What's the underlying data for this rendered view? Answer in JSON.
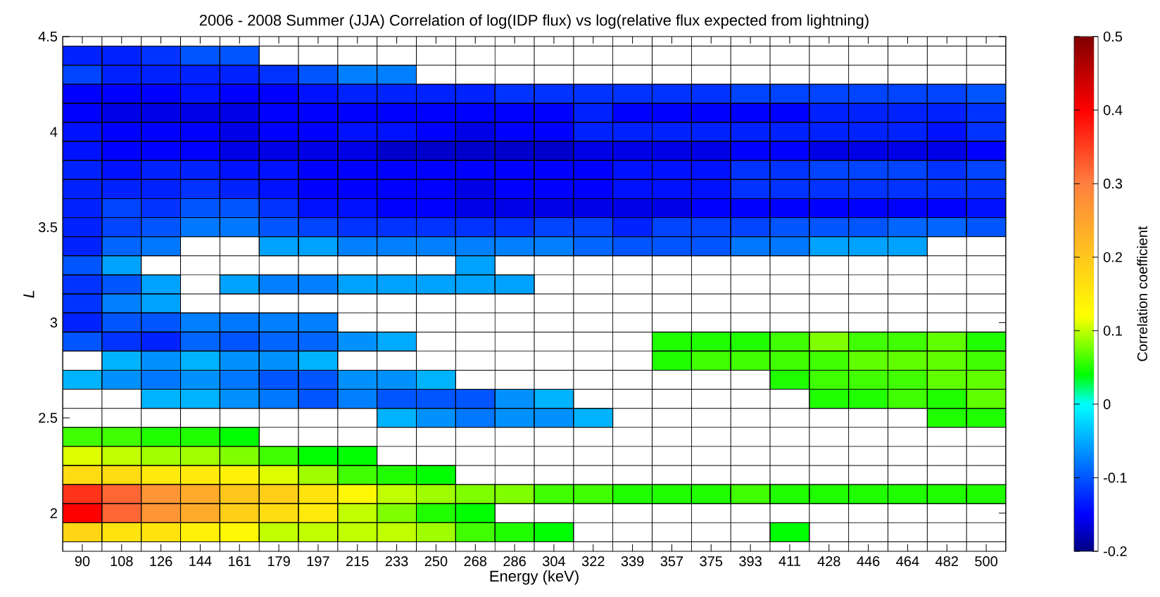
{
  "chart_data": {
    "type": "heatmap",
    "title": "2006 - 2008 Summer (JJA) Correlation of log(IDP flux) vs log(relative flux expected from lightning)",
    "xlabel": "Energy (keV)",
    "ylabel": "L",
    "clabel": "Correlation coefficient",
    "categories": [
      "90",
      "108",
      "126",
      "144",
      "161",
      "179",
      "197",
      "215",
      "233",
      "250",
      "268",
      "286",
      "304",
      "322",
      "339",
      "357",
      "375",
      "393",
      "411",
      "428",
      "446",
      "464",
      "482",
      "500"
    ],
    "grid": true,
    "ylim": [
      1.8,
      4.5
    ],
    "yticks": [
      2,
      2.5,
      3,
      3.5,
      4,
      4.5
    ],
    "clim": [
      -0.2,
      0.5
    ],
    "cticks": [
      -0.2,
      -0.1,
      0,
      0.1,
      0.2,
      0.3,
      0.4,
      0.5
    ],
    "cells": [
      [
        -0.13,
        -0.13,
        -0.12,
        -0.1,
        -0.1,
        null,
        null,
        null,
        null,
        null,
        null,
        null,
        null,
        null,
        null,
        null,
        null,
        null,
        null,
        null,
        null,
        null,
        null,
        null
      ],
      [
        -0.11,
        -0.13,
        -0.13,
        -0.13,
        -0.13,
        -0.12,
        -0.1,
        -0.075,
        -0.075,
        null,
        null,
        null,
        null,
        null,
        null,
        null,
        null,
        null,
        null,
        null,
        null,
        null,
        null,
        null
      ],
      [
        -0.15,
        -0.15,
        -0.15,
        -0.14,
        -0.15,
        -0.15,
        -0.14,
        -0.13,
        -0.13,
        -0.13,
        -0.13,
        -0.12,
        -0.12,
        -0.12,
        -0.12,
        -0.12,
        -0.12,
        -0.11,
        -0.11,
        -0.11,
        -0.11,
        -0.11,
        -0.11,
        -0.1
      ],
      [
        -0.15,
        -0.16,
        -0.16,
        -0.16,
        -0.16,
        -0.15,
        -0.15,
        -0.15,
        -0.15,
        -0.15,
        -0.15,
        -0.15,
        -0.15,
        -0.13,
        -0.15,
        -0.15,
        -0.15,
        -0.15,
        -0.15,
        -0.13,
        -0.13,
        -0.13,
        -0.13,
        -0.12
      ],
      [
        -0.14,
        -0.15,
        -0.15,
        -0.15,
        -0.16,
        -0.15,
        -0.15,
        -0.14,
        -0.14,
        -0.15,
        -0.16,
        -0.15,
        -0.15,
        -0.13,
        -0.13,
        -0.13,
        -0.13,
        -0.13,
        -0.13,
        -0.13,
        -0.13,
        -0.13,
        -0.14,
        -0.12
      ],
      [
        -0.14,
        -0.15,
        -0.15,
        -0.15,
        -0.16,
        -0.16,
        -0.16,
        -0.16,
        -0.17,
        -0.17,
        -0.17,
        -0.17,
        -0.17,
        -0.16,
        -0.16,
        -0.16,
        -0.16,
        -0.15,
        -0.15,
        -0.16,
        -0.16,
        -0.16,
        -0.16,
        -0.15
      ],
      [
        -0.13,
        -0.14,
        -0.13,
        -0.13,
        -0.14,
        -0.14,
        -0.15,
        -0.15,
        -0.15,
        -0.15,
        -0.15,
        -0.15,
        -0.15,
        -0.15,
        -0.14,
        -0.14,
        -0.14,
        -0.12,
        -0.12,
        -0.11,
        -0.11,
        -0.11,
        -0.12,
        -0.11
      ],
      [
        -0.13,
        -0.13,
        -0.13,
        -0.12,
        -0.13,
        -0.14,
        -0.15,
        -0.15,
        -0.15,
        -0.15,
        -0.16,
        -0.15,
        -0.15,
        -0.15,
        -0.14,
        -0.14,
        -0.14,
        -0.12,
        -0.12,
        -0.12,
        -0.12,
        -0.12,
        -0.12,
        -0.12
      ],
      [
        -0.13,
        -0.11,
        -0.12,
        -0.1,
        -0.1,
        -0.12,
        -0.14,
        -0.14,
        -0.15,
        -0.15,
        -0.16,
        -0.16,
        -0.16,
        -0.16,
        -0.16,
        -0.16,
        -0.15,
        -0.15,
        -0.15,
        -0.15,
        -0.15,
        -0.15,
        -0.15,
        -0.14
      ],
      [
        -0.13,
        -0.11,
        -0.1,
        -0.08,
        -0.08,
        -0.1,
        -0.11,
        -0.12,
        -0.12,
        -0.12,
        -0.12,
        -0.12,
        -0.11,
        -0.11,
        -0.13,
        -0.11,
        -0.11,
        -0.11,
        -0.1,
        -0.1,
        -0.1,
        -0.09,
        -0.09,
        -0.1
      ],
      [
        -0.13,
        -0.09,
        -0.08,
        null,
        null,
        -0.055,
        -0.055,
        -0.075,
        -0.075,
        -0.075,
        -0.075,
        -0.075,
        -0.075,
        -0.09,
        -0.1,
        -0.1,
        -0.1,
        -0.08,
        -0.08,
        -0.055,
        -0.055,
        -0.055,
        null,
        null
      ],
      [
        -0.1,
        -0.055,
        null,
        null,
        null,
        null,
        null,
        null,
        null,
        null,
        -0.055,
        null,
        null,
        null,
        null,
        null,
        null,
        null,
        null,
        null,
        null,
        null,
        null,
        null
      ],
      [
        -0.12,
        -0.1,
        -0.055,
        null,
        -0.055,
        -0.075,
        -0.075,
        -0.055,
        -0.055,
        -0.055,
        -0.055,
        -0.055,
        null,
        null,
        null,
        null,
        null,
        null,
        null,
        null,
        null,
        null,
        null,
        null
      ],
      [
        -0.12,
        -0.075,
        -0.055,
        null,
        null,
        null,
        null,
        null,
        null,
        null,
        null,
        null,
        null,
        null,
        null,
        null,
        null,
        null,
        null,
        null,
        null,
        null,
        null,
        null
      ],
      [
        -0.13,
        -0.1,
        -0.1,
        -0.075,
        -0.08,
        -0.075,
        -0.075,
        null,
        null,
        null,
        null,
        null,
        null,
        null,
        null,
        null,
        null,
        null,
        null,
        null,
        null,
        null,
        null,
        null
      ],
      [
        -0.1,
        -0.12,
        -0.13,
        -0.09,
        -0.1,
        -0.09,
        -0.09,
        -0.065,
        -0.05,
        null,
        null,
        null,
        null,
        null,
        null,
        0.05,
        0.05,
        0.05,
        0.06,
        0.08,
        0.06,
        0.06,
        0.07,
        0.05
      ],
      [
        null,
        -0.045,
        -0.065,
        -0.045,
        -0.065,
        -0.065,
        -0.045,
        null,
        null,
        null,
        null,
        null,
        null,
        null,
        null,
        0.05,
        0.06,
        0.06,
        0.06,
        0.06,
        0.07,
        0.07,
        0.07,
        0.06
      ],
      [
        -0.045,
        -0.065,
        -0.08,
        -0.065,
        -0.08,
        -0.1,
        -0.1,
        -0.065,
        -0.065,
        -0.045,
        null,
        null,
        null,
        null,
        null,
        null,
        null,
        null,
        0.05,
        0.06,
        0.06,
        0.06,
        0.07,
        0.07
      ],
      [
        null,
        null,
        -0.045,
        -0.045,
        -0.065,
        -0.08,
        -0.1,
        -0.075,
        -0.1,
        -0.1,
        -0.1,
        -0.065,
        -0.045,
        null,
        null,
        null,
        null,
        null,
        null,
        0.05,
        0.05,
        0.06,
        0.05,
        0.07
      ],
      [
        null,
        null,
        null,
        null,
        null,
        null,
        null,
        null,
        -0.045,
        -0.065,
        -0.08,
        -0.065,
        -0.065,
        -0.045,
        null,
        null,
        null,
        null,
        null,
        null,
        null,
        null,
        0.05,
        0.05
      ],
      [
        0.06,
        0.06,
        0.05,
        0.05,
        0.04,
        null,
        null,
        null,
        null,
        null,
        null,
        null,
        null,
        null,
        null,
        null,
        null,
        null,
        null,
        null,
        null,
        null,
        null,
        null
      ],
      [
        0.11,
        0.1,
        0.09,
        0.09,
        0.08,
        0.06,
        0.04,
        0.04,
        null,
        null,
        null,
        null,
        null,
        null,
        null,
        null,
        null,
        null,
        null,
        null,
        null,
        null,
        null,
        null
      ],
      [
        0.17,
        0.17,
        0.15,
        0.15,
        0.14,
        0.11,
        0.09,
        0.06,
        0.05,
        0.04,
        null,
        null,
        null,
        null,
        null,
        null,
        null,
        null,
        null,
        null,
        null,
        null,
        null,
        null
      ],
      [
        0.36,
        0.32,
        0.27,
        0.24,
        0.2,
        0.19,
        0.16,
        0.13,
        0.1,
        0.09,
        0.08,
        0.08,
        0.06,
        0.06,
        0.05,
        0.05,
        0.05,
        0.06,
        0.05,
        0.05,
        0.05,
        0.05,
        0.05,
        0.05
      ],
      [
        0.4,
        0.32,
        0.27,
        0.24,
        0.19,
        0.17,
        0.15,
        0.1,
        0.08,
        0.05,
        0.04,
        null,
        null,
        null,
        null,
        null,
        null,
        null,
        null,
        null,
        null,
        null,
        null,
        null
      ],
      [
        0.18,
        0.16,
        0.16,
        0.14,
        0.13,
        0.1,
        0.1,
        0.1,
        0.1,
        0.09,
        0.06,
        0.05,
        0.04,
        null,
        null,
        null,
        null,
        null,
        0.04,
        null,
        null,
        null,
        null,
        null
      ]
    ]
  }
}
